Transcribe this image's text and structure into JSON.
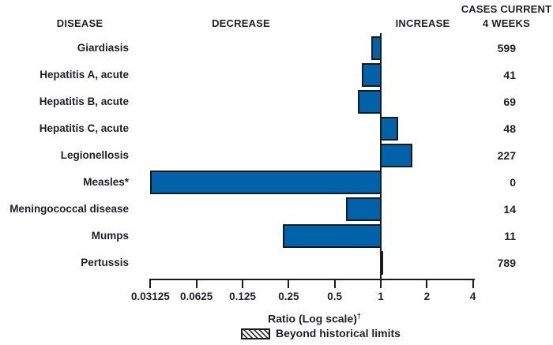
{
  "header": {
    "disease": "DISEASE",
    "decrease": "DECREASE",
    "increase": "INCREASE",
    "cases_line1": "CASES CURRENT",
    "cases_line2": "4 WEEKS"
  },
  "chart_data": {
    "type": "bar",
    "orientation": "horizontal",
    "x_scale": "log2",
    "title": "",
    "xlabel": "Ratio (Log scale)",
    "xlabel_footnote_symbol": "†",
    "baseline_ratio": 1,
    "x_ticks": [
      0.03125,
      0.0625,
      0.125,
      0.25,
      0.5,
      1,
      2,
      4
    ],
    "x_tick_labels": [
      "0.03125",
      "0.0625",
      "0.125",
      "0.25",
      "0.5",
      "1",
      "2",
      "4"
    ],
    "xlim": [
      0.03125,
      4
    ],
    "bar_color": "#0062a8",
    "bar_border_color": "#1a1a1a",
    "legend": [
      {
        "label": "Beyond historical limits",
        "swatch": "diagonal-hatch"
      }
    ],
    "rows": [
      {
        "disease": "Giardiasis",
        "ratio": 0.87,
        "cases": "599"
      },
      {
        "disease": "Hepatitis A, acute",
        "ratio": 0.75,
        "cases": "41"
      },
      {
        "disease": "Hepatitis B, acute",
        "ratio": 0.71,
        "cases": "69"
      },
      {
        "disease": "Hepatitis C, acute",
        "ratio": 1.3,
        "cases": "48"
      },
      {
        "disease": "Legionellosis",
        "ratio": 1.6,
        "cases": "227"
      },
      {
        "disease": "Measles*",
        "ratio": 0.031,
        "cases": "0"
      },
      {
        "disease": "Meningococcal disease",
        "ratio": 0.59,
        "cases": "14"
      },
      {
        "disease": "Mumps",
        "ratio": 0.23,
        "cases": "11"
      },
      {
        "disease": "Pertussis",
        "ratio": 1.02,
        "cases": "789"
      }
    ]
  }
}
